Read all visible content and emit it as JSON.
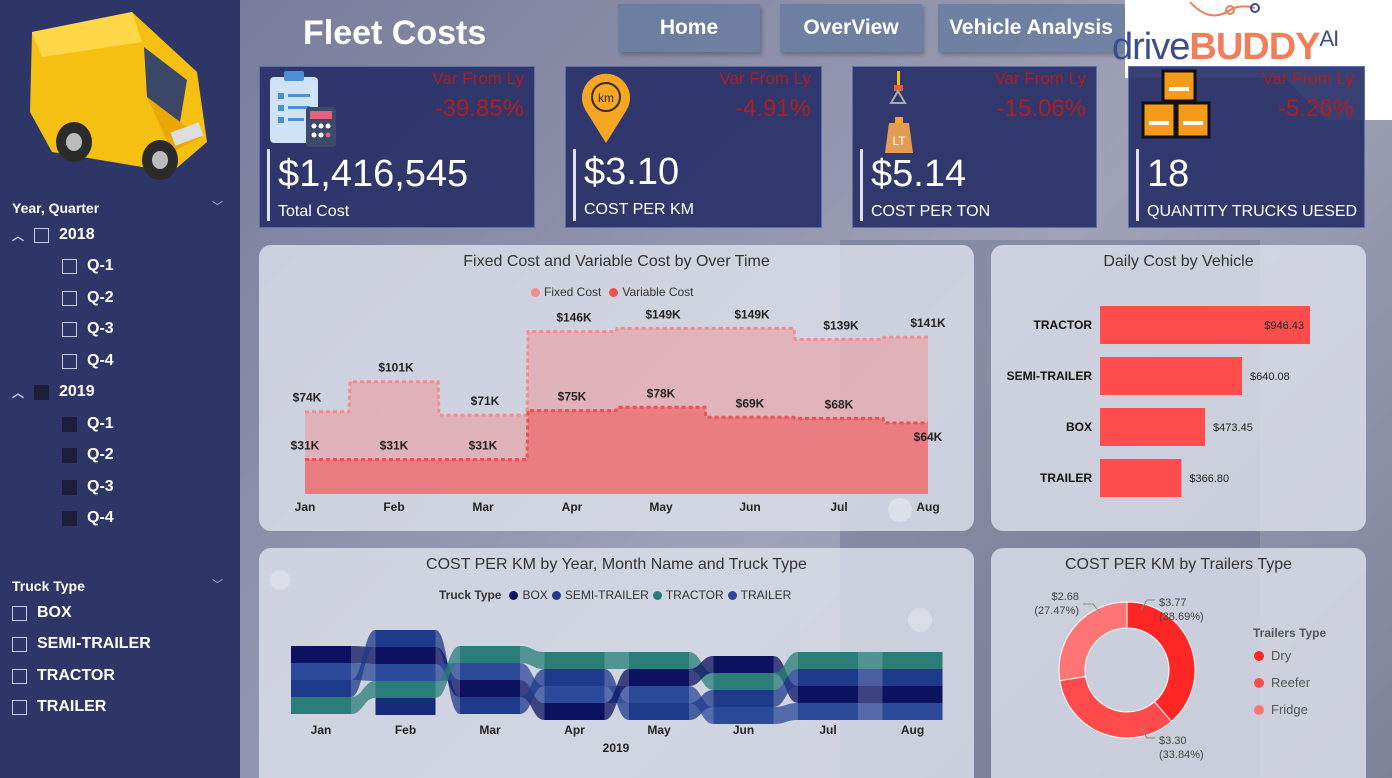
{
  "header": {
    "title": "Fleet Costs",
    "nav": [
      "Home",
      "OverView",
      "Vehicle Analysis"
    ],
    "logo": {
      "part1": "drive",
      "part2": "BUDDY",
      "part3": "AI"
    }
  },
  "sidebar": {
    "year_quarter": {
      "title": "Year, Quarter",
      "years": [
        {
          "label": "2018",
          "checked": false,
          "quarters": [
            "Q-1",
            "Q-2",
            "Q-3",
            "Q-4"
          ]
        },
        {
          "label": "2019",
          "checked": true,
          "quarters": [
            "Q-1",
            "Q-2",
            "Q-3",
            "Q-4"
          ]
        }
      ]
    },
    "truck_type": {
      "title": "Truck Type",
      "items": [
        "BOX",
        "SEMI-TRAILER",
        "TRACTOR",
        "TRAILER"
      ]
    }
  },
  "kpis": [
    {
      "var_label": "Var From Ly",
      "var_value": "-39.85%",
      "value": "$1,416,545",
      "caption": "Total Cost",
      "icon": "clipboard-calculator-icon"
    },
    {
      "var_label": "Var From Ly",
      "var_value": "-4.91%",
      "value": "$3.10",
      "caption": "COST PER KM",
      "icon": "km-pin-icon"
    },
    {
      "var_label": "Var From Ly",
      "var_value": "-15.06%",
      "value": "$5.14",
      "caption": "COST PER TON",
      "icon": "crane-weight-icon"
    },
    {
      "var_label": "Var From Ly",
      "var_value": "-5.26%",
      "value": "18",
      "caption": "QUANTITY TRUCKS UESED",
      "icon": "boxes-icon"
    }
  ],
  "chart_data": [
    {
      "type": "area",
      "title": "Fixed Cost and Variable Cost by Over Time",
      "categories": [
        "Jan",
        "Feb",
        "Mar",
        "Apr",
        "May",
        "Jun",
        "Jul",
        "Aug"
      ],
      "series": [
        {
          "name": "Fixed Cost",
          "values": [
            74,
            101,
            71,
            146,
            149,
            149,
            139,
            141
          ],
          "labels": [
            "$74K",
            "$101K",
            "$71K",
            "$146K",
            "$149K",
            "$149K",
            "$139K",
            "$141K"
          ]
        },
        {
          "name": "Variable Cost",
          "values": [
            31,
            31,
            31,
            75,
            78,
            69,
            68,
            64
          ],
          "labels": [
            "$31K",
            "$31K",
            "$31K",
            "$75K",
            "$78K",
            "$69K",
            "$68K",
            "$64K"
          ]
        }
      ],
      "colors": [
        "#f58c8c",
        "#f05050"
      ],
      "ylim": [
        0,
        170
      ]
    },
    {
      "type": "bar",
      "title": "Daily Cost by Vehicle",
      "categories": [
        "TRACTOR",
        "SEMI-TRAILER",
        "BOX",
        "TRAILER"
      ],
      "values": [
        946.43,
        640.08,
        473.45,
        366.8
      ],
      "labels": [
        "$946.43",
        "$640.08",
        "$473.45",
        "$366.80"
      ],
      "color": "#ff4d4d"
    },
    {
      "type": "area",
      "title": "COST PER KM by Year, Month Name and Truck Type",
      "legend_title": "Truck Type",
      "series_names": [
        "BOX",
        "SEMI-TRAILER",
        "TRACTOR",
        "TRAILER"
      ],
      "colors": [
        "#0c1160",
        "#1e3a8a",
        "#2a7d78",
        "#2c4a9a"
      ],
      "categories": [
        "Jan",
        "Feb",
        "Mar",
        "Apr",
        "May",
        "Jun",
        "Jul",
        "Aug"
      ],
      "xlabel": "2019"
    },
    {
      "type": "pie",
      "title": "COST PER KM by Trailers Type",
      "legend_title": "Trailers Type",
      "slices": [
        {
          "name": "Dry",
          "value": 3.77,
          "label": "$3.77",
          "pct": "(38.69%)",
          "color": "#ff2626"
        },
        {
          "name": "Reefer",
          "value": 3.3,
          "label": "$3.30",
          "pct": "(33.84%)",
          "color": "#ff4b4b"
        },
        {
          "name": "Fridge",
          "value": 2.68,
          "label": "$2.68",
          "pct": "(27.47%)",
          "color": "#ff7575"
        }
      ]
    }
  ]
}
